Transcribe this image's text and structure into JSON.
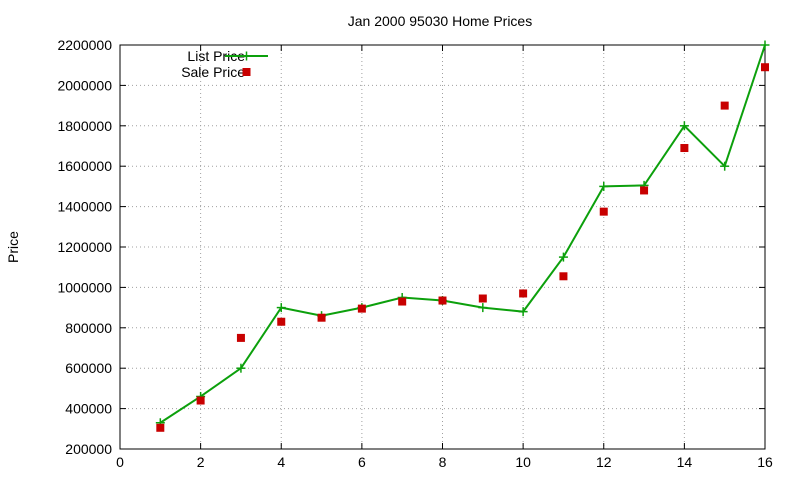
{
  "chart_data": {
    "type": "line",
    "title": "Jan 2000 95030 Home Prices",
    "xlabel": "",
    "ylabel": "Price",
    "xlim": [
      0,
      16
    ],
    "ylim": [
      200000,
      2200000
    ],
    "x_ticks": [
      "0",
      "2",
      "4",
      "6",
      "8",
      "10",
      "12",
      "14",
      "16"
    ],
    "y_ticks": [
      "200000",
      "400000",
      "600000",
      "800000",
      "1000000",
      "1200000",
      "1400000",
      "1600000",
      "1800000",
      "2000000",
      "2200000"
    ],
    "grid": true,
    "legend_position": "top-left",
    "series": [
      {
        "name": "List Price",
        "style": "lines+crosses",
        "color": "#0ca00c",
        "x": [
          1,
          2,
          3,
          4,
          5,
          6,
          7,
          8,
          9,
          10,
          11,
          12,
          13,
          14,
          15,
          16
        ],
        "y": [
          330000,
          460000,
          600000,
          900000,
          860000,
          900000,
          950000,
          935000,
          900000,
          880000,
          1150000,
          1500000,
          1505000,
          1800000,
          1600000,
          2200000
        ]
      },
      {
        "name": "Sale Price",
        "style": "squares",
        "color": "#c80000",
        "x": [
          1,
          2,
          3,
          4,
          5,
          6,
          7,
          8,
          9,
          10,
          11,
          12,
          13,
          14,
          15,
          16
        ],
        "y": [
          305000,
          440000,
          750000,
          830000,
          850000,
          895000,
          930000,
          935000,
          945000,
          970000,
          1055000,
          1375000,
          1480000,
          1690000,
          1900000,
          2090000
        ]
      }
    ]
  }
}
